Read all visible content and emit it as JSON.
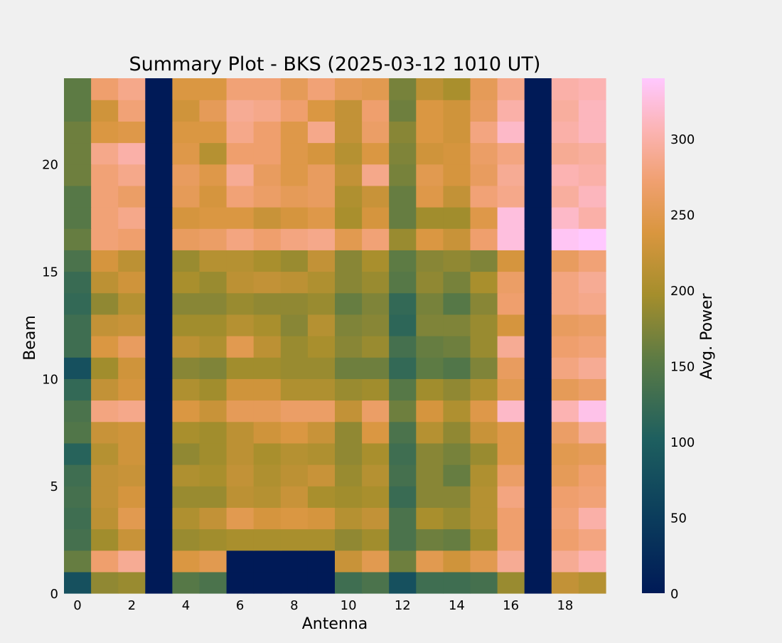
{
  "chart_data": {
    "type": "heatmap",
    "title": "Summary Plot - BKS (2025-03-12 1010 UT)",
    "xlabel": "Antenna",
    "ylabel": "Beam",
    "colorbar_label": "Avg. Power",
    "x_ticks": [
      "0",
      "2",
      "4",
      "6",
      "8",
      "10",
      "12",
      "14",
      "16",
      "18"
    ],
    "y_ticks": [
      "0",
      "5",
      "10",
      "15",
      "20"
    ],
    "colorbar_ticks": [
      "0",
      "50",
      "100",
      "150",
      "200",
      "250",
      "300"
    ],
    "vmin": 0,
    "vmax": 340,
    "xlim": [
      -0.5,
      19.5
    ],
    "ylim": [
      0,
      24
    ],
    "grid": false,
    "colormap_stops": [
      [
        0,
        "#001a57"
      ],
      [
        0.15,
        "#0b3d5c"
      ],
      [
        0.3,
        "#1e5f5f"
      ],
      [
        0.45,
        "#5a7a45"
      ],
      [
        0.58,
        "#a58e2c"
      ],
      [
        0.7,
        "#d9963f"
      ],
      [
        0.8,
        "#f0a070"
      ],
      [
        0.9,
        "#fcb4b4"
      ],
      [
        1.0,
        "#ffc8ff"
      ]
    ],
    "rows": [
      [
        80,
        185,
        190,
        0,
        150,
        140,
        0,
        0,
        0,
        0,
        130,
        140,
        80,
        130,
        130,
        135,
        190,
        0,
        220,
        210
      ],
      [
        160,
        270,
        290,
        0,
        240,
        250,
        0,
        0,
        0,
        0,
        225,
        250,
        165,
        250,
        230,
        250,
        290,
        0,
        290,
        305
      ],
      [
        135,
        195,
        225,
        0,
        190,
        195,
        200,
        200,
        200,
        200,
        185,
        195,
        140,
        165,
        160,
        195,
        270,
        0,
        270,
        280
      ],
      [
        130,
        215,
        250,
        0,
        205,
        220,
        250,
        235,
        240,
        235,
        210,
        220,
        140,
        200,
        190,
        210,
        270,
        0,
        275,
        300
      ],
      [
        135,
        220,
        235,
        0,
        190,
        190,
        215,
        210,
        225,
        200,
        195,
        200,
        125,
        180,
        180,
        210,
        280,
        0,
        270,
        275
      ],
      [
        130,
        220,
        225,
        0,
        205,
        200,
        220,
        205,
        215,
        225,
        190,
        210,
        135,
        180,
        160,
        205,
        265,
        0,
        255,
        270
      ],
      [
        110,
        210,
        230,
        0,
        185,
        195,
        215,
        200,
        210,
        205,
        185,
        200,
        130,
        180,
        170,
        190,
        245,
        0,
        250,
        255
      ],
      [
        145,
        225,
        230,
        0,
        200,
        195,
        215,
        230,
        240,
        225,
        185,
        240,
        140,
        210,
        185,
        225,
        245,
        0,
        265,
        290
      ],
      [
        140,
        280,
        285,
        0,
        240,
        225,
        255,
        255,
        265,
        265,
        220,
        265,
        165,
        235,
        205,
        245,
        315,
        0,
        305,
        330
      ],
      [
        120,
        220,
        235,
        0,
        205,
        195,
        230,
        230,
        205,
        205,
        190,
        195,
        150,
        195,
        185,
        205,
        250,
        0,
        255,
        265
      ],
      [
        80,
        195,
        230,
        0,
        180,
        175,
        195,
        195,
        190,
        190,
        165,
        165,
        120,
        155,
        145,
        175,
        260,
        0,
        280,
        290
      ],
      [
        130,
        240,
        260,
        0,
        215,
        205,
        250,
        215,
        190,
        200,
        180,
        190,
        135,
        160,
        165,
        190,
        290,
        0,
        270,
        275
      ],
      [
        130,
        220,
        225,
        0,
        195,
        195,
        210,
        200,
        180,
        210,
        175,
        180,
        115,
        175,
        175,
        190,
        235,
        0,
        260,
        265
      ],
      [
        120,
        185,
        210,
        0,
        180,
        180,
        190,
        185,
        185,
        190,
        160,
        175,
        120,
        170,
        150,
        180,
        270,
        0,
        280,
        285
      ],
      [
        125,
        215,
        230,
        0,
        200,
        190,
        215,
        220,
        215,
        205,
        180,
        190,
        150,
        185,
        170,
        200,
        265,
        0,
        280,
        290
      ],
      [
        140,
        235,
        215,
        0,
        190,
        210,
        210,
        200,
        190,
        220,
        180,
        200,
        155,
        180,
        185,
        175,
        235,
        0,
        260,
        275
      ],
      [
        160,
        275,
        270,
        0,
        260,
        265,
        280,
        270,
        280,
        285,
        250,
        275,
        190,
        240,
        225,
        270,
        325,
        0,
        335,
        345
      ],
      [
        150,
        275,
        285,
        0,
        235,
        240,
        240,
        225,
        235,
        245,
        200,
        235,
        160,
        195,
        195,
        245,
        325,
        0,
        315,
        300
      ],
      [
        150,
        275,
        265,
        0,
        255,
        235,
        275,
        265,
        255,
        260,
        205,
        225,
        160,
        245,
        220,
        275,
        285,
        0,
        295,
        310
      ],
      [
        165,
        275,
        285,
        0,
        260,
        245,
        290,
        260,
        245,
        260,
        220,
        285,
        170,
        250,
        235,
        260,
        290,
        0,
        305,
        300
      ],
      [
        165,
        285,
        300,
        0,
        245,
        210,
        270,
        270,
        245,
        235,
        210,
        240,
        175,
        230,
        235,
        265,
        280,
        0,
        290,
        295
      ],
      [
        165,
        240,
        245,
        0,
        240,
        240,
        285,
        270,
        245,
        285,
        220,
        265,
        180,
        240,
        230,
        280,
        315,
        0,
        300,
        310
      ],
      [
        155,
        230,
        275,
        0,
        230,
        255,
        290,
        285,
        270,
        240,
        220,
        270,
        165,
        240,
        230,
        260,
        300,
        0,
        295,
        310
      ],
      [
        155,
        270,
        285,
        0,
        240,
        240,
        275,
        275,
        255,
        275,
        255,
        250,
        170,
        215,
        200,
        255,
        285,
        0,
        300,
        305
      ]
    ]
  }
}
